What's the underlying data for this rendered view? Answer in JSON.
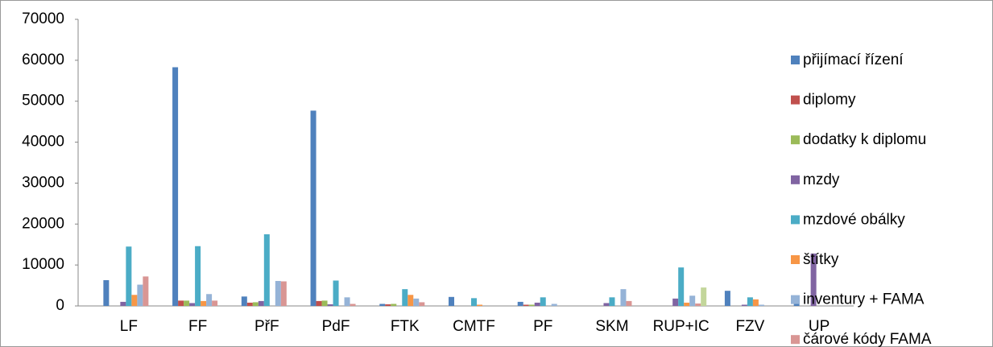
{
  "chart_data": {
    "type": "bar",
    "categories": [
      "LF",
      "FF",
      "PřF",
      "PdF",
      "FTK",
      "CMTF",
      "PF",
      "SKM",
      "RUP+IC",
      "FZV",
      "UP"
    ],
    "series": [
      {
        "name": "přijímací řízení",
        "color": "#4f81bd",
        "values": [
          6300,
          58300,
          2300,
          47700,
          500,
          2200,
          1000,
          0,
          0,
          3700,
          1000
        ]
      },
      {
        "name": "diplomy",
        "color": "#c0504d",
        "values": [
          0,
          1300,
          800,
          1200,
          400,
          0,
          300,
          0,
          0,
          0,
          0
        ]
      },
      {
        "name": "dodatky k diplomu",
        "color": "#9bbb59",
        "values": [
          0,
          1300,
          900,
          1300,
          500,
          0,
          300,
          0,
          0,
          0,
          0
        ]
      },
      {
        "name": "mzdy",
        "color": "#8064a2",
        "values": [
          1000,
          700,
          1200,
          400,
          0,
          0,
          800,
          700,
          1800,
          300,
          12800
        ]
      },
      {
        "name": "mzdové obálky",
        "color": "#4bacc6",
        "values": [
          14500,
          14600,
          17500,
          6200,
          4100,
          1900,
          2100,
          2100,
          9400,
          2100,
          0
        ]
      },
      {
        "name": "štítky",
        "color": "#f79646",
        "values": [
          2700,
          1200,
          0,
          0,
          2700,
          300,
          0,
          0,
          800,
          1600,
          0
        ]
      },
      {
        "name": "inventury + FAMA",
        "color": "#95b3d7",
        "values": [
          5200,
          2900,
          6100,
          2100,
          1800,
          0,
          500,
          4100,
          2500,
          300,
          0
        ]
      },
      {
        "name": "čárové kódy FAMA",
        "color": "#d99694",
        "values": [
          7200,
          1300,
          6000,
          500,
          900,
          0,
          0,
          1200,
          600,
          0,
          0
        ]
      },
      {
        "color": "#c3d69b",
        "values": [
          0,
          0,
          0,
          0,
          0,
          0,
          0,
          0,
          4500,
          0,
          0
        ]
      }
    ],
    "ylim": [
      0,
      70000
    ],
    "yticks": [
      0,
      10000,
      20000,
      30000,
      40000,
      50000,
      60000,
      70000
    ],
    "grid": false,
    "legend": "right"
  }
}
